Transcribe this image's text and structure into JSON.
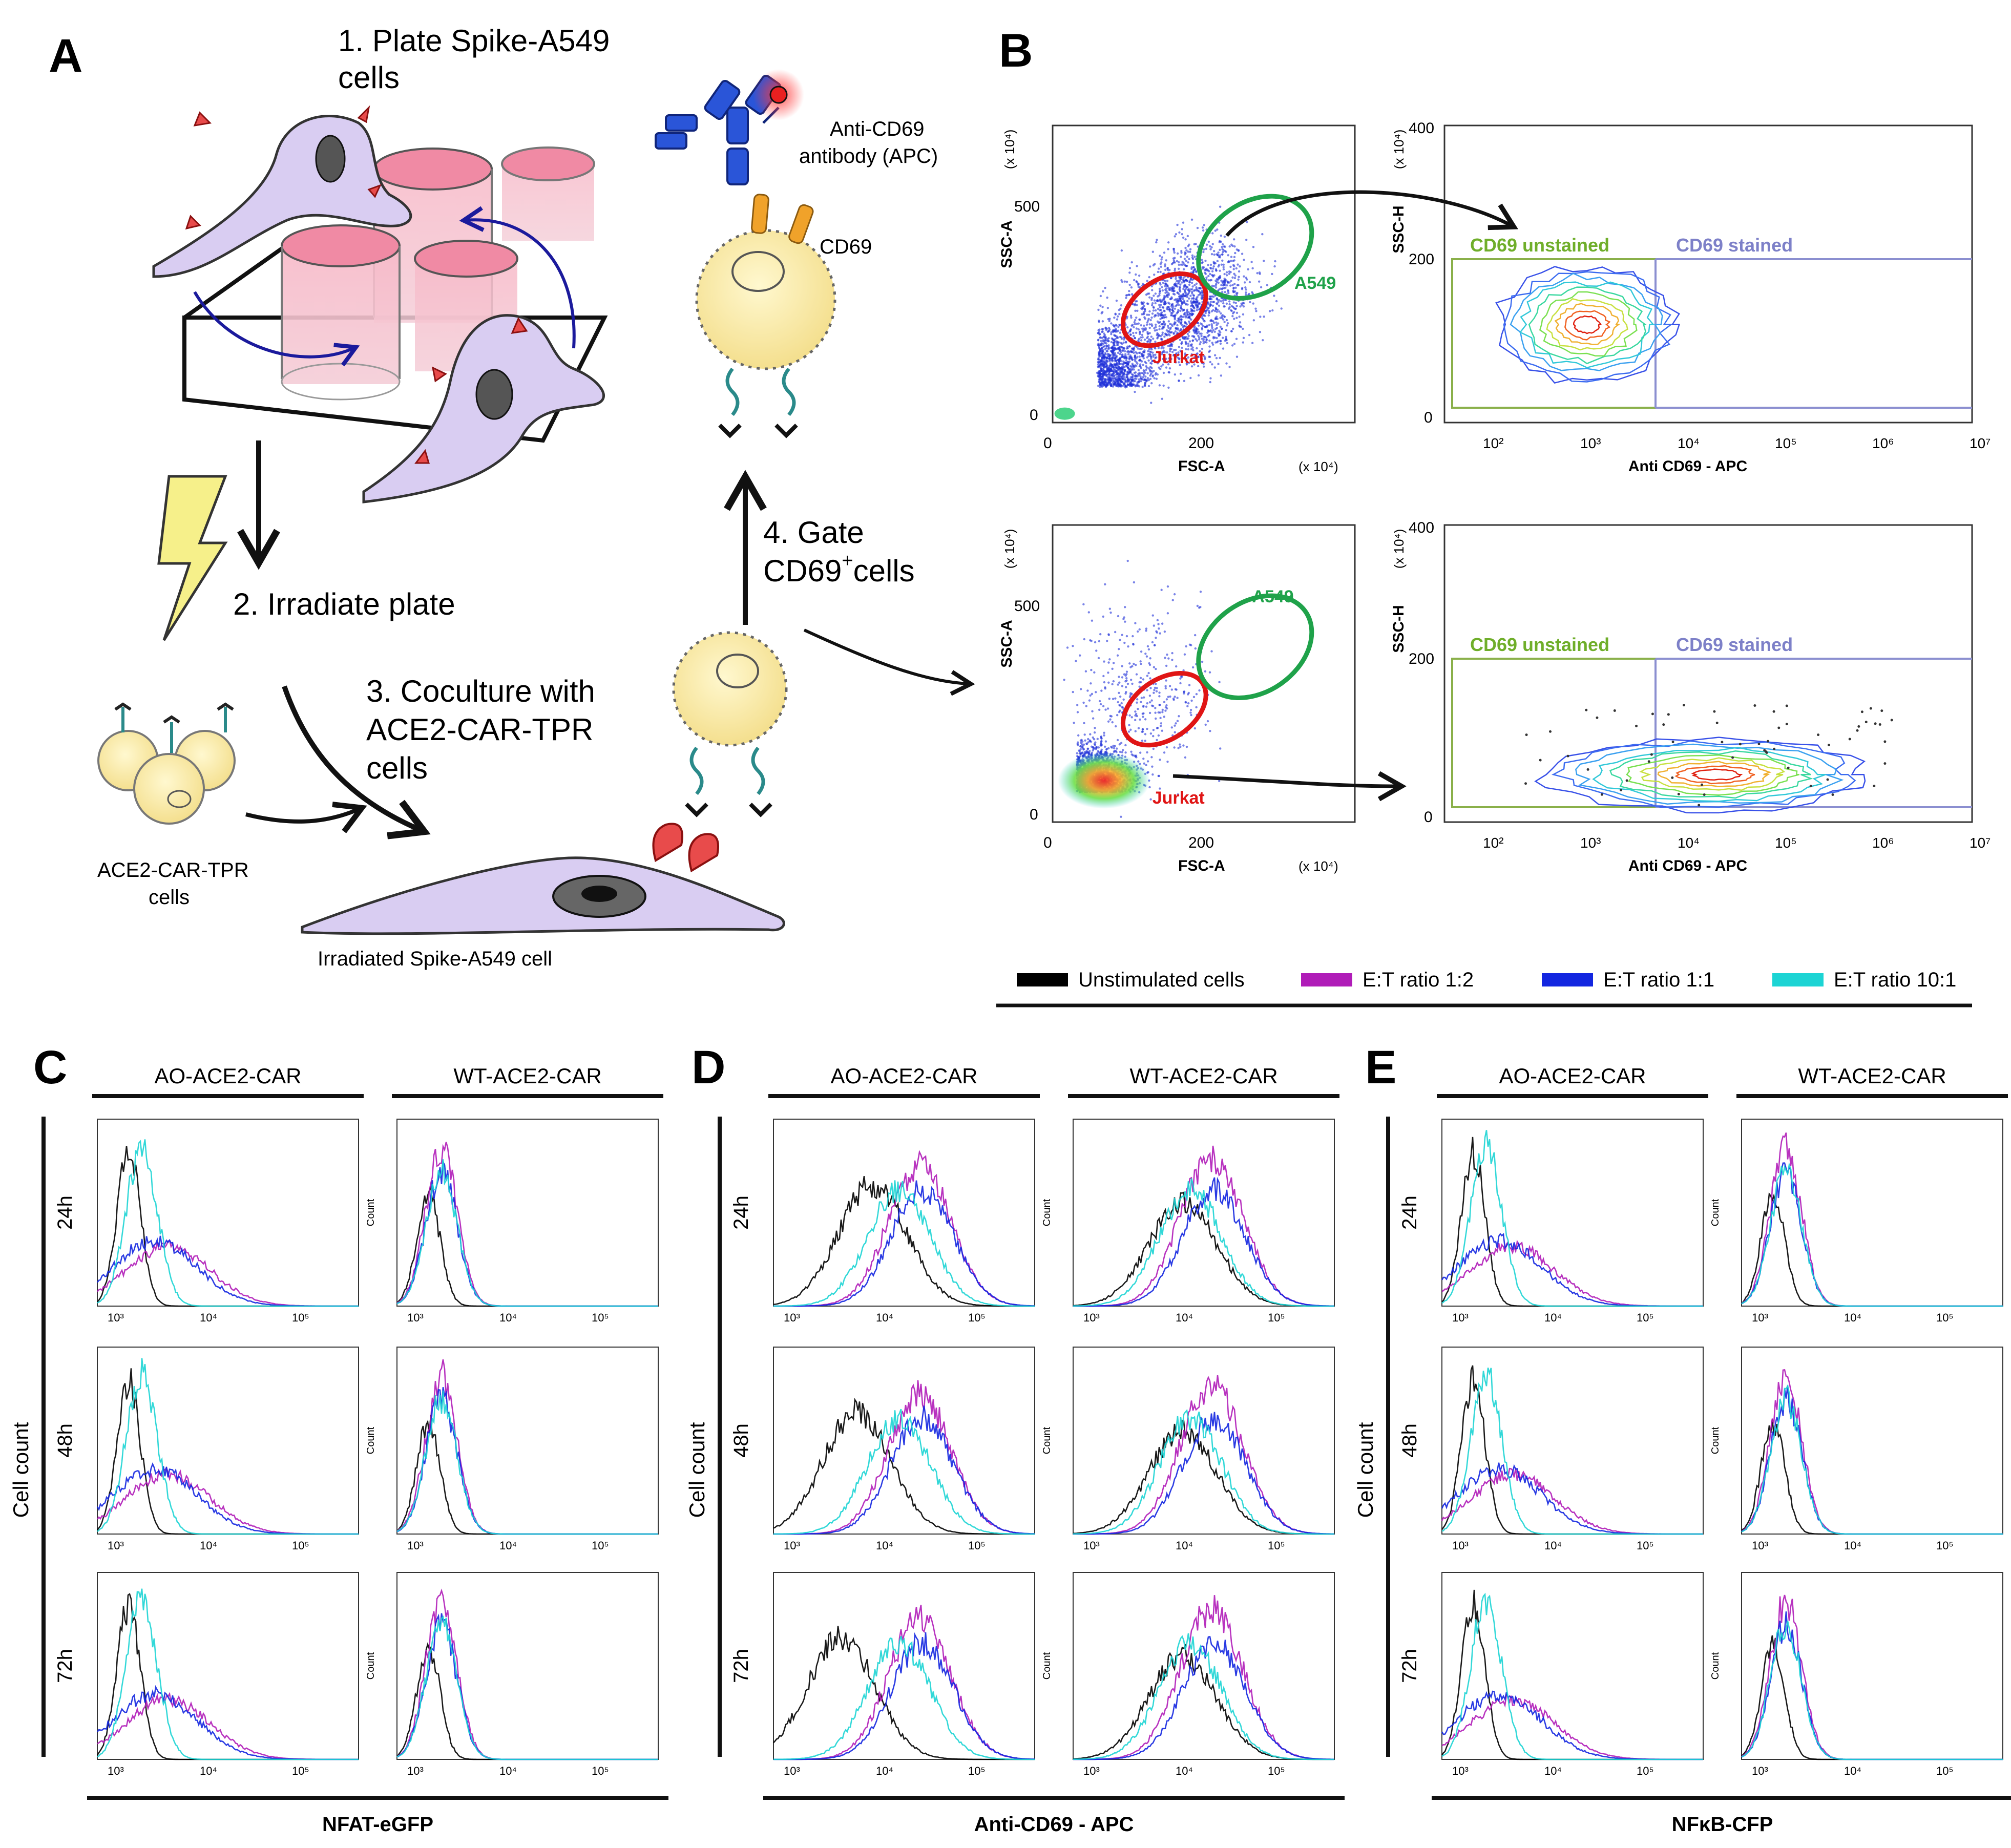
{
  "panelA": {
    "letter": "A",
    "step1_line1": "1. Plate Spike-A549",
    "step1_line2": "cells",
    "step2": "2. Irradiate plate",
    "step3_line1": "3. Coculture with",
    "step3_line2": "ACE2-CAR-TPR",
    "step3_line3": "cells",
    "step4_line1": "4. Gate",
    "step4_line2": "CD69",
    "step4_sup": "+",
    "step4_line2b": "cells",
    "antibody_line1": "Anti-CD69",
    "antibody_line2": "antibody (APC)",
    "cd69": "CD69",
    "car_cells_line1": "ACE2-CAR-TPR",
    "car_cells_line2": "cells",
    "irradiated_cell": "Irradiated Spike-A549 cell"
  },
  "panelB": {
    "letter": "B",
    "scatter": {
      "xlabel": "FSC-A",
      "ylabel": "SSC-A",
      "xtick_0": "0",
      "xtick_200": "200",
      "ytick_0": "0",
      "ytick_500": "500",
      "x_unit": "(x 10⁴)",
      "y_unit": "(x 10⁴)",
      "gate_a549": "A549",
      "gate_jurkat": "Jurkat"
    },
    "contour": {
      "xlabel": "Anti CD69 - APC",
      "ylabel": "SSC-H",
      "ytick_0": "0",
      "ytick_200": "200",
      "ytick_400": "400",
      "y_unit": "(x 10⁴)",
      "gate_unstained": "CD69 unstained",
      "gate_stained": "CD69 stained",
      "xticks": [
        "10²",
        "10³",
        "10⁴",
        "10⁵",
        "10⁶",
        "10⁷"
      ]
    }
  },
  "legend": {
    "items": [
      {
        "label": "Unstimulated cells",
        "color": "#000000"
      },
      {
        "label": "E:T ratio 1:2",
        "color": "#b01cb8"
      },
      {
        "label": "E:T ratio 1:1",
        "color": "#1326e0"
      },
      {
        "label": "E:T ratio 10:1",
        "color": "#1cd4d4"
      }
    ]
  },
  "histograms": {
    "cell_count": "Cell count",
    "count_small": "Count",
    "times": [
      "24h",
      "48h",
      "72h"
    ],
    "groupC": {
      "letter": "C",
      "left": "AO-ACE2-CAR",
      "right": "WT-ACE2-CAR",
      "xlabel": "NFAT-eGFP"
    },
    "groupD": {
      "letter": "D",
      "left": "AO-ACE2-CAR",
      "right": "WT-ACE2-CAR",
      "xlabel": "Anti-CD69 - APC"
    },
    "groupE": {
      "letter": "E",
      "left": "AO-ACE2-CAR",
      "right": "WT-ACE2-CAR",
      "xlabel": "NFκB-CFP"
    }
  }
}
